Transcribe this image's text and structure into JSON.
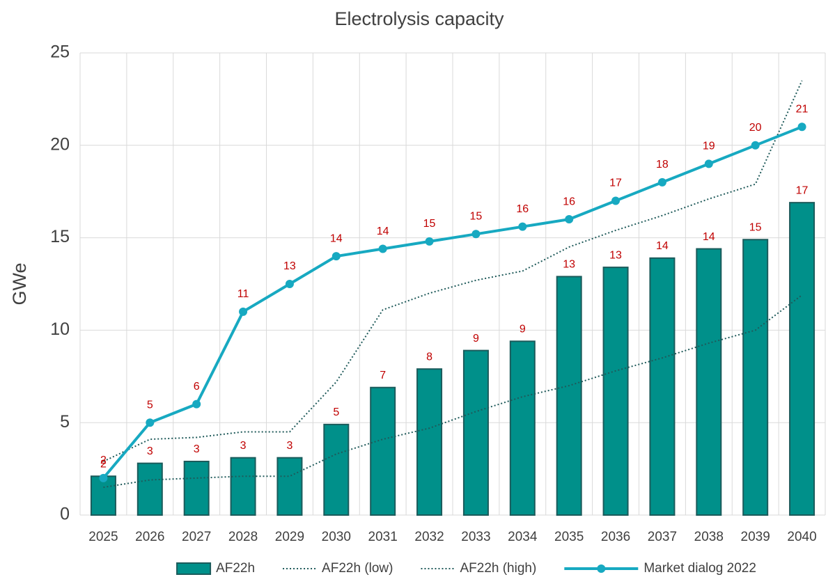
{
  "chart_data": {
    "type": "combo",
    "title": "Electrolysis capacity",
    "y_label": "GWe",
    "categories": [
      "2025",
      "2026",
      "2027",
      "2028",
      "2029",
      "2030",
      "2031",
      "2032",
      "2033",
      "2034",
      "2035",
      "2036",
      "2037",
      "2038",
      "2039",
      "2040"
    ],
    "ylim": [
      0,
      25
    ],
    "yticks": [
      0,
      5,
      10,
      15,
      20,
      25
    ],
    "grid": true,
    "legend": "bottom",
    "series": [
      {
        "name": "AF22h",
        "type": "bar",
        "color": "#00908a",
        "edge": "#1b5b5b",
        "values": [
          2.1,
          2.8,
          2.9,
          3.1,
          3.1,
          4.9,
          6.9,
          7.9,
          8.9,
          9.4,
          12.9,
          13.4,
          13.9,
          14.4,
          14.9,
          16.9
        ],
        "value_labels": [
          "2",
          "3",
          "3",
          "3",
          "3",
          "5",
          "7",
          "8",
          "9",
          "9",
          "13",
          "13",
          "14",
          "14",
          "15",
          "17"
        ]
      },
      {
        "name": "AF22h (low)",
        "type": "line",
        "style": "dotted",
        "color": "#1f5a5a",
        "values": [
          1.5,
          1.9,
          2.0,
          2.1,
          2.1,
          3.3,
          4.1,
          4.7,
          5.6,
          6.4,
          7.0,
          7.8,
          8.5,
          9.3,
          10.0,
          11.9
        ]
      },
      {
        "name": "AF22h (high)",
        "type": "line",
        "style": "dotted",
        "color": "#1f5a5a",
        "values": [
          2.9,
          4.1,
          4.2,
          4.5,
          4.5,
          7.2,
          11.1,
          12.0,
          12.7,
          13.2,
          14.5,
          15.4,
          16.2,
          17.1,
          17.9,
          23.5
        ]
      },
      {
        "name": "Market dialog 2022",
        "type": "line",
        "style": "solid",
        "markers": true,
        "color": "#17a9c1",
        "values": [
          2.0,
          5.0,
          6.0,
          11.0,
          12.5,
          14.0,
          14.4,
          14.8,
          15.2,
          15.6,
          16.0,
          17.0,
          18.0,
          19.0,
          20.0,
          21.0
        ],
        "value_labels": [
          "2",
          "5",
          "6",
          "11",
          "13",
          "14",
          "14",
          "15",
          "15",
          "16",
          "16",
          "17",
          "18",
          "19",
          "20",
          "21"
        ]
      }
    ],
    "label_color": "#c00000"
  }
}
